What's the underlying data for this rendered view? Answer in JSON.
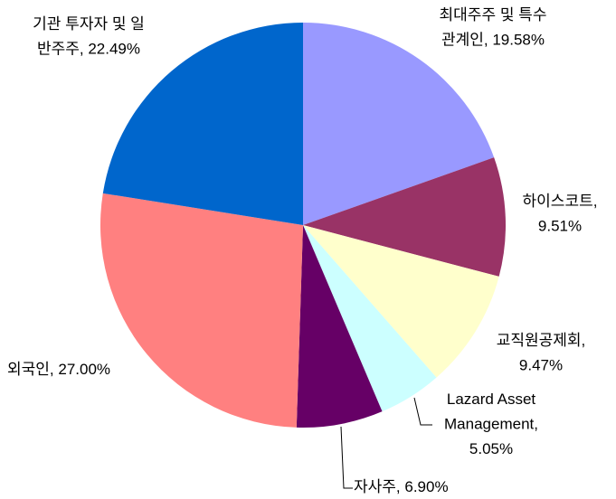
{
  "chart_data": {
    "type": "pie",
    "labels": [
      "최대주주 및 특수관계인, 19.58%",
      "하이스코트, 9.51%",
      "교직원공제회, 9.47%",
      "Lazard Asset Management, 5.05%",
      "자사주, 6.90%",
      "외국인, 27.00%",
      "기관 투자자 및 일반주주, 22.49%"
    ],
    "values": [
      19.58,
      9.51,
      9.47,
      5.05,
      6.9,
      27.0,
      22.49
    ],
    "colors": [
      "#9999FF",
      "#993366",
      "#FFFFCC",
      "#CCFFFF",
      "#660066",
      "#FF8080",
      "#0066CC"
    ]
  }
}
